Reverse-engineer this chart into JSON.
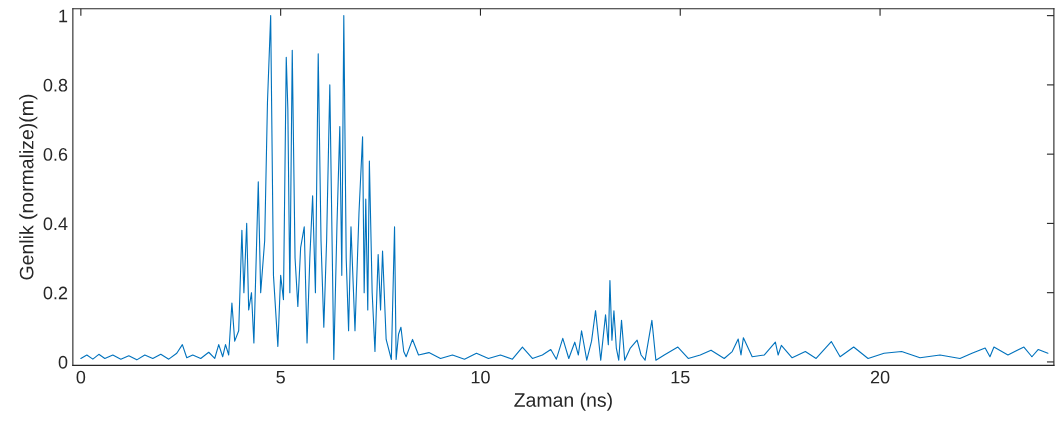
{
  "chart_data": {
    "type": "line",
    "xlabel": "Zaman (ns)",
    "ylabel": "Genlik (normalize)(m)",
    "x": [
      0,
      0.15,
      0.3,
      0.45,
      0.6,
      0.8,
      1.0,
      1.2,
      1.4,
      1.6,
      1.8,
      2.0,
      2.2,
      2.4,
      2.54,
      2.65,
      2.8,
      3.0,
      3.2,
      3.35,
      3.45,
      3.55,
      3.62,
      3.7,
      3.78,
      3.85,
      3.95,
      4.03,
      4.08,
      4.15,
      4.2,
      4.27,
      4.33,
      4.44,
      4.5,
      4.6,
      4.67,
      4.75,
      4.82,
      4.93,
      5.0,
      5.07,
      5.14,
      5.18,
      5.23,
      5.29,
      5.36,
      5.43,
      5.5,
      5.59,
      5.66,
      5.73,
      5.8,
      5.87,
      5.94,
      6.01,
      6.08,
      6.15,
      6.23,
      6.33,
      6.41,
      6.48,
      6.53,
      6.58,
      6.64,
      6.7,
      6.76,
      6.86,
      6.96,
      7.05,
      7.09,
      7.13,
      7.18,
      7.22,
      7.29,
      7.36,
      7.44,
      7.5,
      7.55,
      7.64,
      7.77,
      7.85,
      7.89,
      7.95,
      8.01,
      8.08,
      8.14,
      8.3,
      8.45,
      8.71,
      9.0,
      9.3,
      9.6,
      9.9,
      10.2,
      10.5,
      10.8,
      11.05,
      11.3,
      11.55,
      11.76,
      11.9,
      12.06,
      12.21,
      12.36,
      12.45,
      12.53,
      12.66,
      12.78,
      12.88,
      13.01,
      13.13,
      13.2,
      13.24,
      13.29,
      13.34,
      13.4,
      13.46,
      13.53,
      13.61,
      13.75,
      13.92,
      14.02,
      14.12,
      14.29,
      14.39,
      14.6,
      14.94,
      15.2,
      15.5,
      15.77,
      16.1,
      16.3,
      16.45,
      16.52,
      16.58,
      16.8,
      17.1,
      17.38,
      17.45,
      17.53,
      17.8,
      18.13,
      18.4,
      18.78,
      19.0,
      19.34,
      19.7,
      20.1,
      20.54,
      21.0,
      21.5,
      22.0,
      22.3,
      22.63,
      22.75,
      22.85,
      23.2,
      23.6,
      23.8,
      23.96,
      24.2
    ],
    "values": [
      0.01,
      0.02,
      0.008,
      0.022,
      0.01,
      0.02,
      0.008,
      0.018,
      0.006,
      0.02,
      0.01,
      0.022,
      0.008,
      0.025,
      0.05,
      0.012,
      0.02,
      0.01,
      0.028,
      0.01,
      0.05,
      0.015,
      0.05,
      0.02,
      0.17,
      0.06,
      0.09,
      0.38,
      0.2,
      0.4,
      0.15,
      0.2,
      0.055,
      0.52,
      0.2,
      0.35,
      0.75,
      1.0,
      0.25,
      0.045,
      0.25,
      0.18,
      0.88,
      0.73,
      0.2,
      0.9,
      0.3,
      0.16,
      0.33,
      0.39,
      0.055,
      0.3,
      0.48,
      0.2,
      0.89,
      0.35,
      0.1,
      0.35,
      0.8,
      0.007,
      0.4,
      0.68,
      0.25,
      1.0,
      0.3,
      0.09,
      0.39,
      0.09,
      0.43,
      0.65,
      0.2,
      0.47,
      0.15,
      0.58,
      0.2,
      0.03,
      0.31,
      0.15,
      0.32,
      0.065,
      0.007,
      0.39,
      0.007,
      0.08,
      0.1,
      0.03,
      0.015,
      0.065,
      0.02,
      0.027,
      0.01,
      0.02,
      0.008,
      0.025,
      0.01,
      0.02,
      0.008,
      0.043,
      0.01,
      0.02,
      0.036,
      0.008,
      0.068,
      0.01,
      0.057,
      0.02,
      0.09,
      0.005,
      0.06,
      0.148,
      0.005,
      0.136,
      0.05,
      0.235,
      0.063,
      0.148,
      0.04,
      0.005,
      0.12,
      0.005,
      0.04,
      0.063,
      0.02,
      0.005,
      0.12,
      0.005,
      0.02,
      0.043,
      0.01,
      0.02,
      0.034,
      0.01,
      0.03,
      0.066,
      0.02,
      0.07,
      0.015,
      0.02,
      0.057,
      0.02,
      0.048,
      0.012,
      0.03,
      0.01,
      0.059,
      0.015,
      0.043,
      0.01,
      0.025,
      0.03,
      0.012,
      0.02,
      0.01,
      0.025,
      0.04,
      0.015,
      0.043,
      0.02,
      0.043,
      0.015,
      0.036,
      0.025
    ],
    "color": "#0072bd",
    "xlim": [
      -0.2,
      24.35
    ],
    "ylim": [
      -0.01,
      1.02
    ],
    "xticks": [
      0,
      5,
      10,
      15,
      20
    ],
    "yticks": [
      0,
      0.2,
      0.4,
      0.6,
      0.8,
      1
    ],
    "grid": false,
    "legend": false,
    "marker": "none",
    "line_style": "solid"
  }
}
